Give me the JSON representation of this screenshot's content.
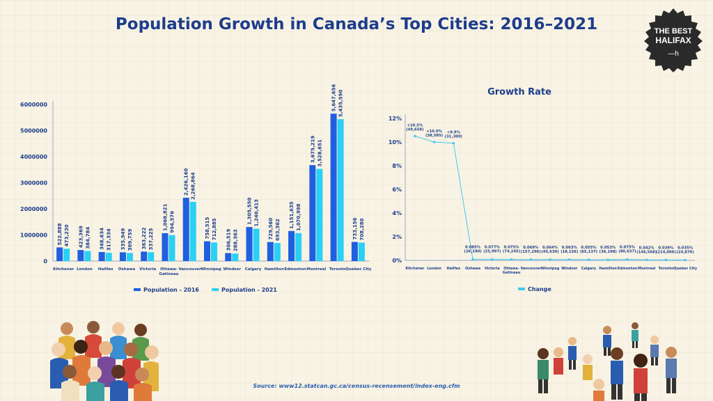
{
  "title": "Population Growth in Canada’s Top Cities: 2016–2021",
  "badge": {
    "line1": "THE BEST",
    "line2": "HALIFAX",
    "mark": "—h"
  },
  "source": "Source: www12.statcan.gc.ca/census-recensement/index-eng.cfm",
  "colors": {
    "pop2016": "#1f5fe0",
    "pop2021": "#2ad0f5",
    "change": "#46c7ee",
    "title": "#1d3d8c"
  },
  "chart_data": [
    {
      "type": "bar",
      "title": "",
      "categories": [
        "Kitchener",
        "London",
        "Halifax",
        "Oshawa",
        "Victoria",
        "Ottawa-Gatineau",
        "Vancouver",
        "Winnipeg",
        "Windsor",
        "Calgary",
        "Hamilton",
        "Edmonton",
        "Montreal",
        "Toronto",
        "Quebec City"
      ],
      "series": [
        {
          "name": "Population - 2016",
          "values": [
            522888,
            423369,
            348634,
            335949,
            363222,
            1068821,
            2426160,
            758515,
            306519,
            1305550,
            729560,
            1151635,
            3675219,
            5647656,
            733156
          ],
          "labels": [
            "522,888",
            "423,369",
            "348,634",
            "335,949",
            "363,222",
            "1,068,821",
            "2,426,160",
            "758,515",
            "306,519",
            "1,305,550",
            "729,560",
            "1,151,635",
            "3,675,219",
            "5,647,656",
            "733,156"
          ]
        },
        {
          "name": "Population - 2021",
          "values": [
            473230,
            384784,
            317334,
            309759,
            337225,
            994576,
            2268864,
            712885,
            288363,
            1240413,
            693362,
            1070998,
            3528651,
            5435590,
            708280
          ],
          "labels": [
            "473,230",
            "384,784",
            "317,334",
            "309,759",
            "337,225",
            "994,576",
            "2,268,864",
            "712,885",
            "288,363",
            "1,240,413",
            "693,362",
            "1,070,998",
            "3,528,651",
            "5,435,590",
            "708,280"
          ]
        }
      ],
      "yticks": [
        "0",
        "1000000",
        "2000000",
        "3000000",
        "4000000",
        "5000000",
        "6000000"
      ],
      "ylim": [
        0,
        6000000
      ],
      "legend_position": "bottom"
    },
    {
      "type": "line",
      "title": "Growth Rate",
      "categories": [
        "Kitchener",
        "London",
        "Halifax",
        "Oshawa",
        "Victoria",
        "Ottawa-Gatineau",
        "Vancouver",
        "Winnipeg",
        "Windsor",
        "Calgary",
        "Hamilton",
        "Edmonton",
        "Montreal",
        "Toronto",
        "Quebec City"
      ],
      "series": [
        {
          "name": "Change",
          "values": [
            10.5,
            10.0,
            9.9,
            0.085,
            0.077,
            0.075,
            0.069,
            0.064,
            0.063,
            0.055,
            0.052,
            0.075,
            0.042,
            0.039,
            0.035
          ]
        }
      ],
      "point_labels": [
        [
          "+10.5%",
          "(49,658)"
        ],
        [
          "+10.0%",
          "(38,585)"
        ],
        [
          "+9.9%",
          "(31,300)"
        ],
        [
          "0.085%",
          "(26,190)"
        ],
        [
          "0.077%",
          "(25,997)"
        ],
        [
          "0.075%",
          "(74,245)"
        ],
        [
          "0.069%",
          "(157,296)"
        ],
        [
          "0.064%",
          "(45,630)"
        ],
        [
          "0.063%",
          "(18,156)"
        ],
        [
          "0.055%",
          "(65,137)"
        ],
        [
          "0.052%",
          "(36,198)"
        ],
        [
          "0.075%",
          "(80,637)"
        ],
        [
          "0.042%",
          "(146,568)"
        ],
        [
          "0.039%",
          "(214,066)"
        ],
        [
          "0.035%",
          "(24,876)"
        ]
      ],
      "yticks": [
        "0%",
        "2%",
        "4%",
        "6%",
        "8%",
        "10%",
        "12%"
      ],
      "ylim": [
        0,
        12
      ],
      "legend_position": "bottom"
    }
  ]
}
